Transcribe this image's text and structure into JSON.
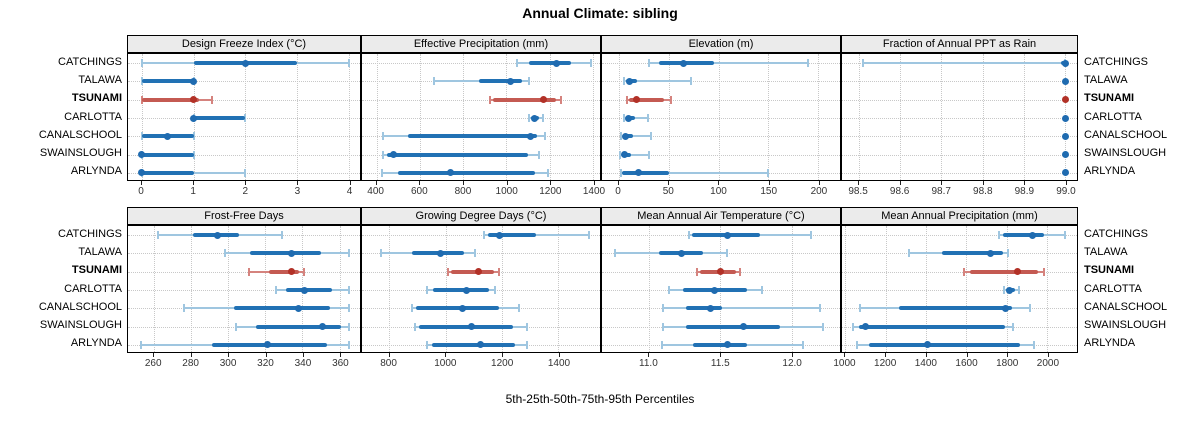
{
  "title": "Annual Climate: sibling",
  "caption": "5th-25th-50th-75th-95th Percentiles",
  "sites": [
    "CATCHINGS",
    "TALAWA",
    "TSUNAMI",
    "CARLOTTA",
    "CANALSCHOOL",
    "SWAINSLOUGH",
    "ARLYNDA"
  ],
  "highlight_site": "TSUNAMI",
  "percentile_levels": [
    5,
    25,
    50,
    75,
    95
  ],
  "colors": {
    "series_line": "#9fc6e0",
    "series_bar": "#2171b4",
    "series_dot": "#1f6bb0",
    "highlight_line": "#d5837e",
    "highlight_bar": "#c45a52",
    "highlight_dot": "#b23127",
    "strip_bg": "#ebebeb",
    "grid": "#c8c8c8",
    "border": "#000000"
  },
  "chart_data": [
    {
      "title": "Design Freeze Index (°C)",
      "type": "scatter",
      "grid_row": 1,
      "grid_col": 1,
      "xlim": [
        -0.27,
        4.22
      ],
      "ticks": {
        "values": [
          0,
          1,
          2,
          3,
          4
        ],
        "labels": [
          "0",
          "1",
          "2",
          "3",
          "4"
        ]
      },
      "series": [
        {
          "site": "CATCHINGS",
          "p": [
            0,
            1,
            2,
            3,
            4
          ]
        },
        {
          "site": "TALAWA",
          "p": [
            0,
            0,
            1,
            1,
            1
          ]
        },
        {
          "site": "TSUNAMI",
          "p": [
            0,
            0,
            1,
            1.1,
            1.35
          ]
        },
        {
          "site": "CARLOTTA",
          "p": [
            1,
            1,
            1,
            2,
            2
          ]
        },
        {
          "site": "CANALSCHOOL",
          "p": [
            0,
            0,
            0.5,
            1,
            1
          ]
        },
        {
          "site": "SWAINSLOUGH",
          "p": [
            0,
            0,
            0,
            1,
            1
          ]
        },
        {
          "site": "ARLYNDA",
          "p": [
            0,
            0,
            0,
            1,
            2
          ]
        }
      ]
    },
    {
      "title": "Effective Precipitation (mm)",
      "type": "scatter",
      "grid_row": 1,
      "grid_col": 2,
      "xlim": [
        333,
        1432
      ],
      "ticks": {
        "values": [
          400,
          600,
          800,
          1000,
          1200,
          1400
        ],
        "labels": [
          "400",
          "600",
          "800",
          "1000",
          "1200",
          "1400"
        ]
      },
      "series": [
        {
          "site": "CATCHINGS",
          "p": [
            1050,
            1105,
            1230,
            1300,
            1390
          ]
        },
        {
          "site": "TALAWA",
          "p": [
            665,
            875,
            1020,
            1070,
            1105
          ]
        },
        {
          "site": "TSUNAMI",
          "p": [
            925,
            940,
            1170,
            1230,
            1250
          ]
        },
        {
          "site": "CARLOTTA",
          "p": [
            1105,
            1115,
            1130,
            1150,
            1170
          ]
        },
        {
          "site": "CANALSCHOOL",
          "p": [
            430,
            545,
            1110,
            1140,
            1180
          ]
        },
        {
          "site": "SWAINSLOUGH",
          "p": [
            430,
            450,
            480,
            1100,
            1150
          ]
        },
        {
          "site": "ARLYNDA",
          "p": [
            425,
            500,
            740,
            1130,
            1190
          ]
        }
      ]
    },
    {
      "title": "Elevation (m)",
      "type": "scatter",
      "grid_row": 1,
      "grid_col": 3,
      "xlim": [
        -17,
        222
      ],
      "ticks": {
        "values": [
          0,
          50,
          100,
          150,
          200
        ],
        "labels": [
          "0",
          "50",
          "100",
          "150",
          "200"
        ]
      },
      "series": [
        {
          "site": "CATCHINGS",
          "p": [
            30,
            40,
            65,
            95,
            190
          ]
        },
        {
          "site": "TALAWA",
          "p": [
            5,
            7,
            11,
            18,
            72
          ]
        },
        {
          "site": "TSUNAMI",
          "p": [
            8,
            10,
            18,
            45,
            52
          ]
        },
        {
          "site": "CARLOTTA",
          "p": [
            5,
            7,
            10,
            16,
            29
          ]
        },
        {
          "site": "CANALSCHOOL",
          "p": [
            2,
            4,
            7,
            14,
            32
          ]
        },
        {
          "site": "SWAINSLOUGH",
          "p": [
            1,
            3,
            6,
            12,
            30
          ]
        },
        {
          "site": "ARLYNDA",
          "p": [
            2,
            3,
            20,
            50,
            150
          ]
        }
      ]
    },
    {
      "title": "Fraction of Annual PPT as Rain",
      "type": "scatter",
      "grid_row": 1,
      "grid_col": 4,
      "xlim": [
        98.459,
        99.029
      ],
      "ticks": {
        "values": [
          98.5,
          98.6,
          98.7,
          98.8,
          98.9,
          99.0
        ],
        "labels": [
          "98.5",
          "98.6",
          "98.7",
          "98.8",
          "98.9",
          "99.0"
        ]
      },
      "series": [
        {
          "site": "CATCHINGS",
          "p": [
            98.51,
            98.99,
            99.0,
            99.0,
            99.0
          ]
        },
        {
          "site": "TALAWA",
          "p": [
            99.0,
            99.0,
            99.0,
            99.0,
            99.0
          ]
        },
        {
          "site": "TSUNAMI",
          "p": [
            99.0,
            99.0,
            99.0,
            99.0,
            99.0
          ]
        },
        {
          "site": "CARLOTTA",
          "p": [
            99.0,
            99.0,
            99.0,
            99.0,
            99.0
          ]
        },
        {
          "site": "CANALSCHOOL",
          "p": [
            99.0,
            99.0,
            99.0,
            99.0,
            99.0
          ]
        },
        {
          "site": "SWAINSLOUGH",
          "p": [
            99.0,
            99.0,
            99.0,
            99.0,
            99.0
          ]
        },
        {
          "site": "ARLYNDA",
          "p": [
            99.0,
            99.0,
            99.0,
            99.0,
            99.0
          ]
        }
      ]
    },
    {
      "title": "Frost-Free Days",
      "type": "scatter",
      "grid_row": 2,
      "grid_col": 1,
      "xlim": [
        246,
        371
      ],
      "ticks": {
        "values": [
          260,
          280,
          300,
          320,
          340,
          360
        ],
        "labels": [
          "260",
          "280",
          "300",
          "320",
          "340",
          "360"
        ]
      },
      "series": [
        {
          "site": "CATCHINGS",
          "p": [
            262,
            281,
            294,
            306,
            329
          ]
        },
        {
          "site": "TALAWA",
          "p": [
            298,
            312,
            334,
            350,
            365
          ]
        },
        {
          "site": "TSUNAMI",
          "p": [
            311,
            322,
            334,
            338,
            341
          ]
        },
        {
          "site": "CARLOTTA",
          "p": [
            326,
            331,
            341,
            356,
            365
          ]
        },
        {
          "site": "CANALSCHOOL",
          "p": [
            276,
            303,
            338,
            355,
            365
          ]
        },
        {
          "site": "SWAINSLOUGH",
          "p": [
            304,
            315,
            351,
            361,
            365
          ]
        },
        {
          "site": "ARLYNDA",
          "p": [
            253,
            291,
            321,
            353,
            365
          ]
        }
      ]
    },
    {
      "title": "Growing Degree Days (°C)",
      "type": "scatter",
      "grid_row": 2,
      "grid_col": 2,
      "xlim": [
        703,
        1548
      ],
      "ticks": {
        "values": [
          800,
          1000,
          1200,
          1400
        ],
        "labels": [
          "800",
          "1000",
          "1200",
          "1400"
        ]
      },
      "series": [
        {
          "site": "CATCHINGS",
          "p": [
            1135,
            1150,
            1190,
            1320,
            1510
          ]
        },
        {
          "site": "TALAWA",
          "p": [
            770,
            880,
            980,
            1065,
            1105
          ]
        },
        {
          "site": "TSUNAMI",
          "p": [
            1010,
            1020,
            1115,
            1170,
            1190
          ]
        },
        {
          "site": "CARLOTTA",
          "p": [
            935,
            955,
            1075,
            1155,
            1175
          ]
        },
        {
          "site": "CANALSCHOOL",
          "p": [
            880,
            895,
            1060,
            1190,
            1260
          ]
        },
        {
          "site": "SWAINSLOUGH",
          "p": [
            890,
            905,
            1090,
            1240,
            1290
          ]
        },
        {
          "site": "ARLYNDA",
          "p": [
            935,
            950,
            1125,
            1245,
            1290
          ]
        }
      ]
    },
    {
      "title": "Mean Annual Air Temperature (°C)",
      "type": "scatter",
      "grid_row": 2,
      "grid_col": 3,
      "xlim": [
        10.67,
        12.34
      ],
      "ticks": {
        "values": [
          11.0,
          11.5,
          12.0
        ],
        "labels": [
          "11.0",
          "11.5",
          "12.0"
        ]
      },
      "series": [
        {
          "site": "CATCHINGS",
          "p": [
            11.28,
            11.3,
            11.55,
            11.78,
            12.14
          ]
        },
        {
          "site": "TALAWA",
          "p": [
            10.76,
            11.07,
            11.23,
            11.38,
            11.55
          ]
        },
        {
          "site": "TSUNAMI",
          "p": [
            11.34,
            11.36,
            11.5,
            11.61,
            11.64
          ]
        },
        {
          "site": "CARLOTTA",
          "p": [
            11.14,
            11.24,
            11.46,
            11.69,
            11.79
          ]
        },
        {
          "site": "CANALSCHOOL",
          "p": [
            11.1,
            11.26,
            11.43,
            11.51,
            12.2
          ]
        },
        {
          "site": "SWAINSLOUGH",
          "p": [
            11.1,
            11.26,
            11.66,
            11.92,
            12.22
          ]
        },
        {
          "site": "ARLYNDA",
          "p": [
            11.09,
            11.31,
            11.55,
            11.69,
            12.08
          ]
        }
      ]
    },
    {
      "title": "Mean Annual Precipitation (mm)",
      "type": "scatter",
      "grid_row": 2,
      "grid_col": 4,
      "xlim": [
        983,
        2148
      ],
      "ticks": {
        "values": [
          1000,
          1200,
          1400,
          1600,
          1800,
          2000
        ],
        "labels": [
          "1000",
          "1200",
          "1400",
          "1600",
          "1800",
          "2000"
        ]
      },
      "series": [
        {
          "site": "CATCHINGS",
          "p": [
            1760,
            1780,
            1925,
            1985,
            2090
          ]
        },
        {
          "site": "TALAWA",
          "p": [
            1315,
            1480,
            1720,
            1780,
            1805
          ]
        },
        {
          "site": "TSUNAMI",
          "p": [
            1590,
            1620,
            1855,
            1955,
            1985
          ]
        },
        {
          "site": "CARLOTTA",
          "p": [
            1785,
            1795,
            1815,
            1840,
            1860
          ]
        },
        {
          "site": "CANALSCHOOL",
          "p": [
            1070,
            1265,
            1795,
            1825,
            1915
          ]
        },
        {
          "site": "SWAINSLOUGH",
          "p": [
            1040,
            1065,
            1100,
            1790,
            1830
          ]
        },
        {
          "site": "ARLYNDA",
          "p": [
            1055,
            1115,
            1405,
            1865,
            1935
          ]
        }
      ]
    }
  ]
}
